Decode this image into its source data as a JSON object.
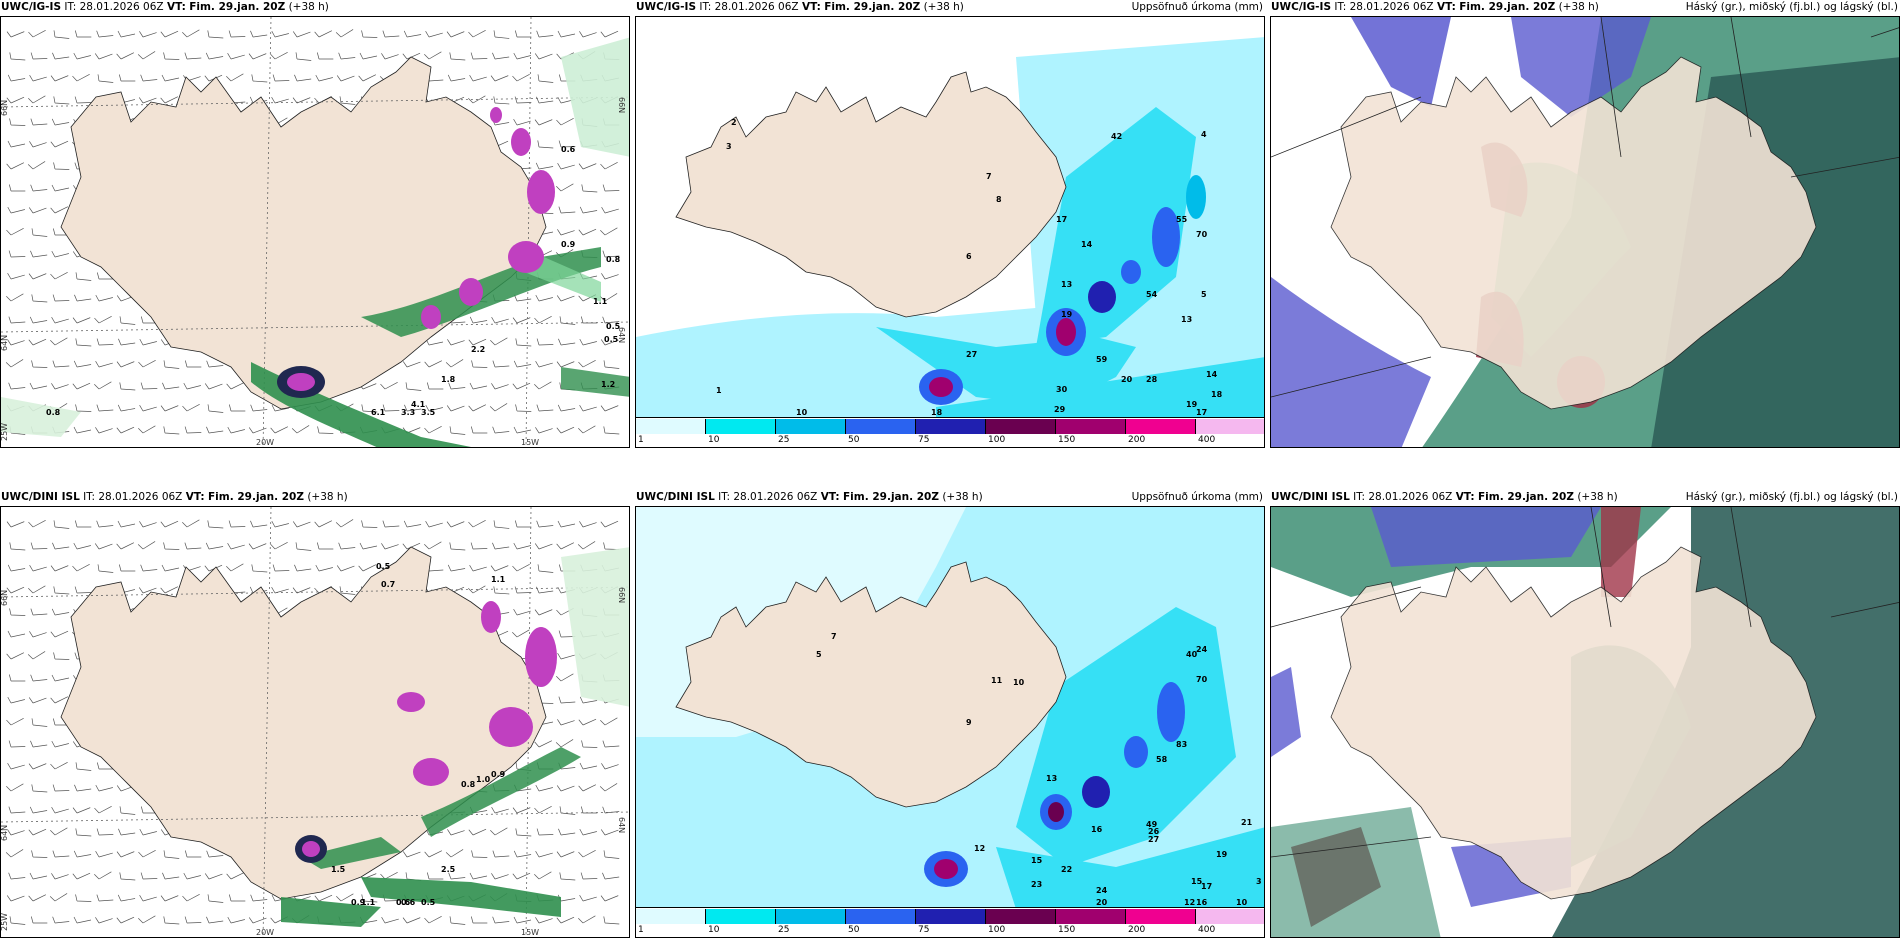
{
  "forecast": {
    "issue": "IT: 28.01.2026 06Z",
    "valid_prefix": "VT:",
    "valid": "Fim. 29.jan. 20Z",
    "lead": "(+38 h)"
  },
  "rows": [
    {
      "model": "UWC/IG-IS"
    },
    {
      "model": "UWC/DINI ISL"
    }
  ],
  "titles": {
    "precip": "Uppsöfnuð úrkoma (mm)",
    "cloud": "Háský (gr.), miðský (fj.bl.) og lágský (bl.)"
  },
  "axes": {
    "lat_66": "66N",
    "lat_64": "64N",
    "lon_25": "25W",
    "lon_20": "20W",
    "lon_15": "15W"
  },
  "legend": {
    "labels": [
      "1",
      "10",
      "25",
      "50",
      "75",
      "100",
      "150",
      "200",
      "400"
    ],
    "colors": [
      "#dffbff",
      "#00e9f0",
      "#00bce9",
      "#2a63f0",
      "#2020b0",
      "#6a0050",
      "#a0006e",
      "#f00090",
      "#f5b8ef"
    ]
  },
  "colors": {
    "land": "#f2e3d5",
    "snow_green": "#2f8f4e",
    "precip_pink": "#c040c0",
    "cyan_light": "#aff3ff",
    "cyan": "#36e0f5",
    "cloud_green": "#3d8e73",
    "cloud_blue": "#5a5ad0",
    "cloud_red": "#a03448"
  },
  "labels": {
    "r1_snow": [
      "0.6",
      "0.8",
      "1.1",
      "0.5",
      "0.5",
      "2.2",
      "1.8",
      "4.1",
      "6.1",
      "3.3",
      "3.5",
      "0.8",
      "0.9",
      "1.2"
    ],
    "r1_precip": [
      "2",
      "3",
      "1",
      "6",
      "7",
      "8",
      "17",
      "14",
      "13",
      "19",
      "27",
      "29",
      "30",
      "20",
      "42",
      "55",
      "70",
      "54",
      "59",
      "13",
      "14",
      "18",
      "19",
      "17",
      "10",
      "18",
      "28",
      "5",
      "4"
    ],
    "r2_snow": [
      "0.5",
      "0.7",
      "1.1",
      "0.9",
      "1.0",
      "0.8",
      "0.6",
      "0.5",
      "1.1",
      "0.9",
      "0.6",
      "1.5",
      "2.5"
    ],
    "r2_precip": [
      "7",
      "5",
      "9",
      "11",
      "10",
      "12",
      "15",
      "13",
      "24",
      "16",
      "22",
      "23",
      "24",
      "20",
      "40",
      "70",
      "58",
      "83",
      "49",
      "26",
      "27",
      "15",
      "21",
      "19",
      "17",
      "12",
      "16",
      "10",
      "3"
    ]
  }
}
